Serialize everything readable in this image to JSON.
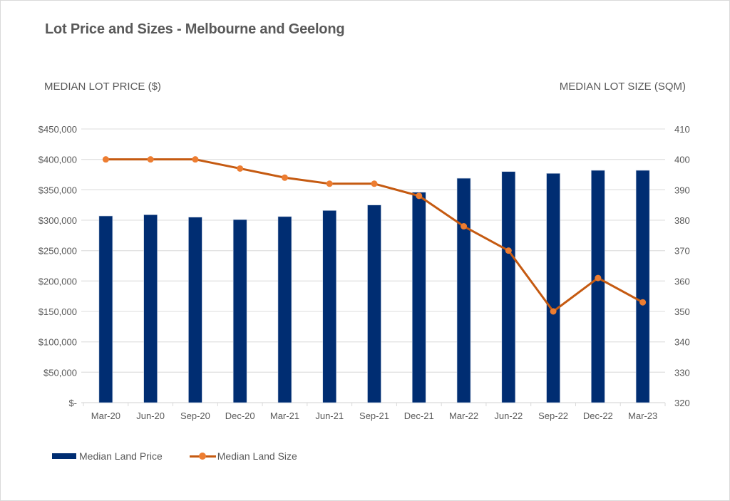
{
  "chart_data": {
    "type": "bar",
    "combo": "bar+line",
    "title": "Lot Price and Sizes - Melbourne and Geelong",
    "ylabel_left": "MEDIAN LOT PRICE ($)",
    "ylabel_right": "MEDIAN LOT SIZE (SQM)",
    "xlabel": "",
    "categories": [
      "Mar-20",
      "Jun-20",
      "Sep-20",
      "Dec-20",
      "Mar-21",
      "Jun-21",
      "Sep-21",
      "Dec-21",
      "Mar-22",
      "Jun-22",
      "Sep-22",
      "Dec-22",
      "Mar-23"
    ],
    "series": [
      {
        "name": "Median Land Price",
        "type": "bar",
        "axis": "left",
        "color": "#002D72",
        "values": [
          307000,
          309000,
          305000,
          301000,
          306000,
          316000,
          325000,
          346000,
          369000,
          380000,
          377000,
          382000,
          382000
        ]
      },
      {
        "name": "Median Land Size",
        "type": "line",
        "axis": "right",
        "color": "#C55A11",
        "marker_color": "#ED7D31",
        "values": [
          400,
          400,
          400,
          397,
          394,
          392,
          392,
          388,
          378,
          370,
          350,
          361,
          353
        ]
      }
    ],
    "ylim_left": [
      0,
      450000
    ],
    "ylim_right": [
      320,
      410
    ],
    "yticks_left": [
      "$-",
      "$50,000",
      "$100,000",
      "$150,000",
      "$200,000",
      "$250,000",
      "$300,000",
      "$350,000",
      "$400,000",
      "$450,000"
    ],
    "yticks_right": [
      "320",
      "330",
      "340",
      "350",
      "360",
      "370",
      "380",
      "390",
      "400",
      "410"
    ],
    "grid": true,
    "legend": "bottom-left"
  }
}
